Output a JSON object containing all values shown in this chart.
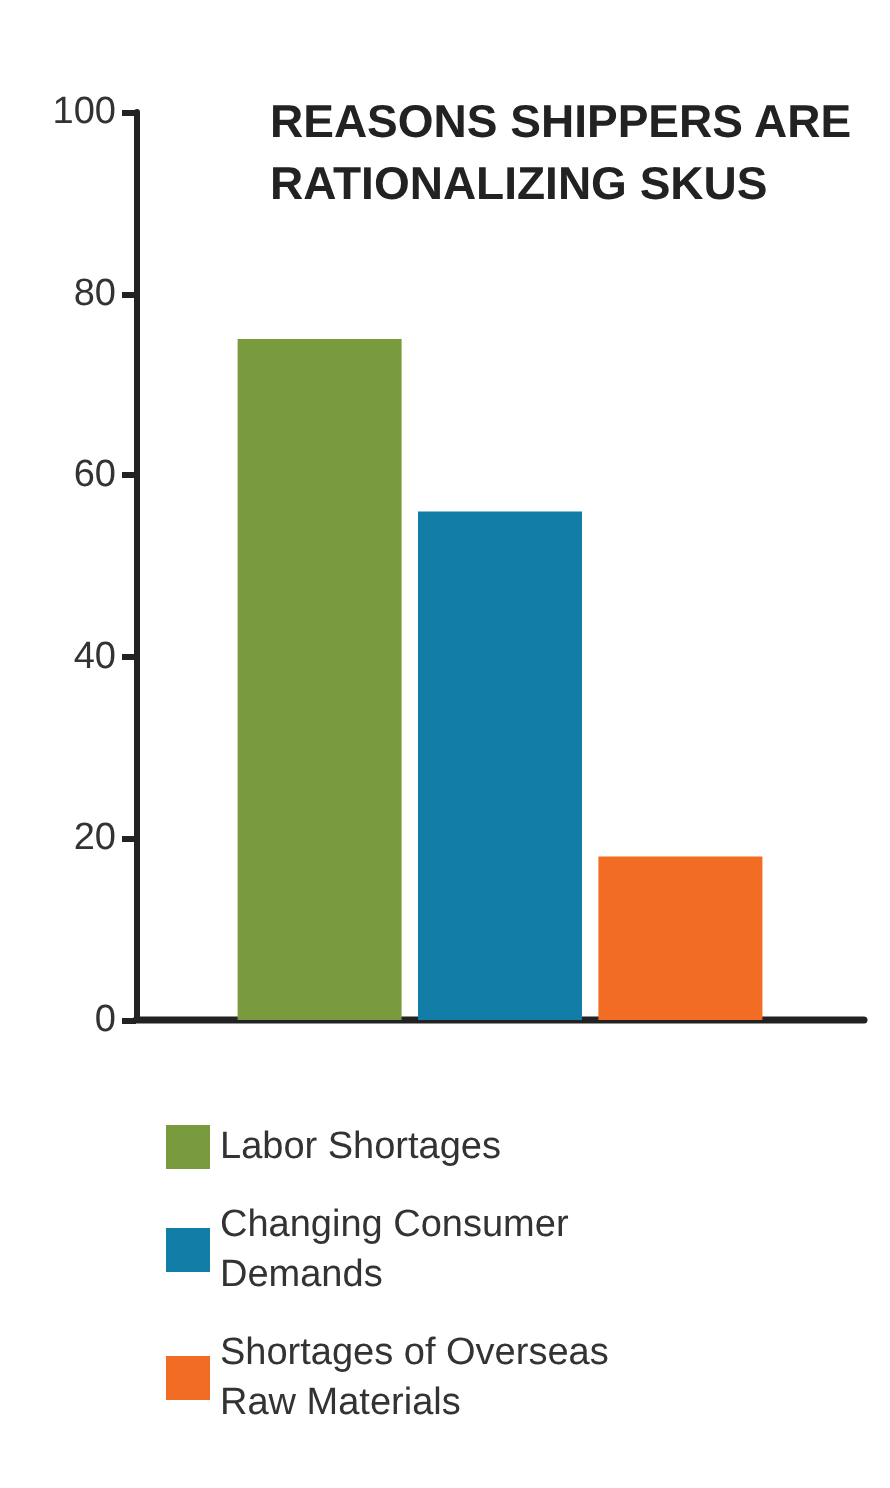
{
  "chart_data": {
    "type": "bar",
    "title": "REASONS SHIPPERS ARE RATIONALIZING SKUS",
    "categories": [
      null
    ],
    "series": [
      {
        "name": "Labor Shortages",
        "color": "#7a9a3e",
        "values": [
          75
        ]
      },
      {
        "name": "Changing Consumer Demands",
        "color": "#127ea8",
        "values": [
          56
        ]
      },
      {
        "name": "Shortages of Overseas Raw Materials",
        "color": "#f26c23",
        "values": [
          18
        ]
      }
    ],
    "ylim": [
      0,
      100
    ],
    "yticks": [
      0,
      20,
      40,
      60,
      80,
      100
    ],
    "grid": false,
    "legend": "bottom"
  }
}
